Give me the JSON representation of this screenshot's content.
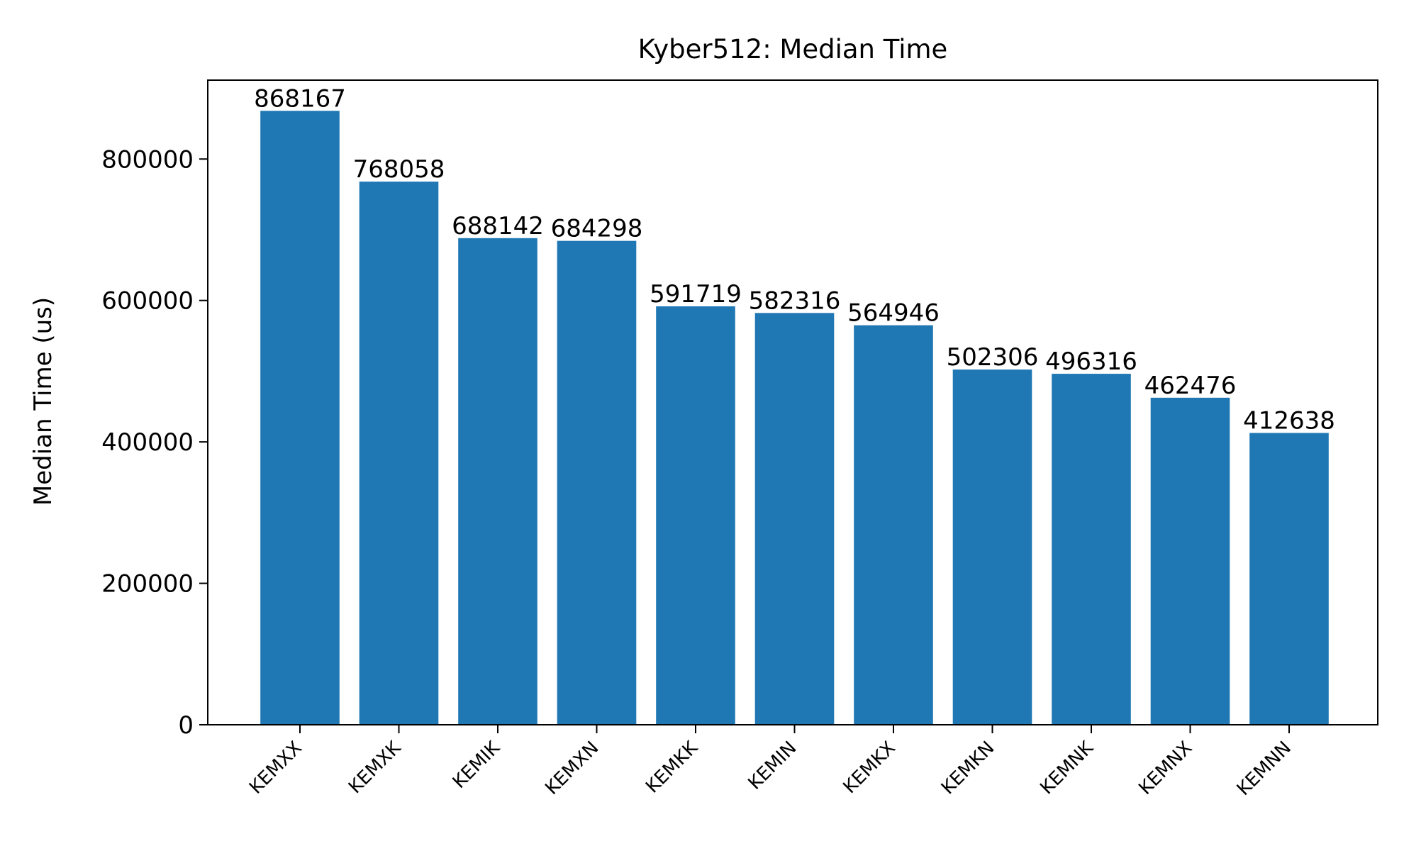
{
  "chart_data": {
    "type": "bar",
    "title": "Kyber512: Median Time",
    "xlabel": "",
    "ylabel": "Median Time (us)",
    "categories": [
      "KEMXX",
      "KEMXK",
      "KEMIK",
      "KEMXN",
      "KEMKK",
      "KEMIN",
      "KEMKX",
      "KEMKN",
      "KEMNK",
      "KEMNX",
      "KEMNN"
    ],
    "values": [
      868167,
      768058,
      688142,
      684298,
      591719,
      582316,
      564946,
      502306,
      496316,
      462476,
      412638
    ],
    "data_labels": [
      "868167",
      "768058",
      "688142",
      "684298",
      "591719",
      "582316",
      "564946",
      "502306",
      "496316",
      "462476",
      "412638"
    ],
    "yticks": [
      0,
      200000,
      400000,
      600000,
      800000
    ],
    "ytick_labels": [
      "0",
      "200000",
      "400000",
      "600000",
      "800000"
    ],
    "ylim": [
      0,
      911575
    ],
    "grid": false,
    "legend": "none",
    "bar_color": "#1f77b4",
    "axis_color": "#000000"
  }
}
